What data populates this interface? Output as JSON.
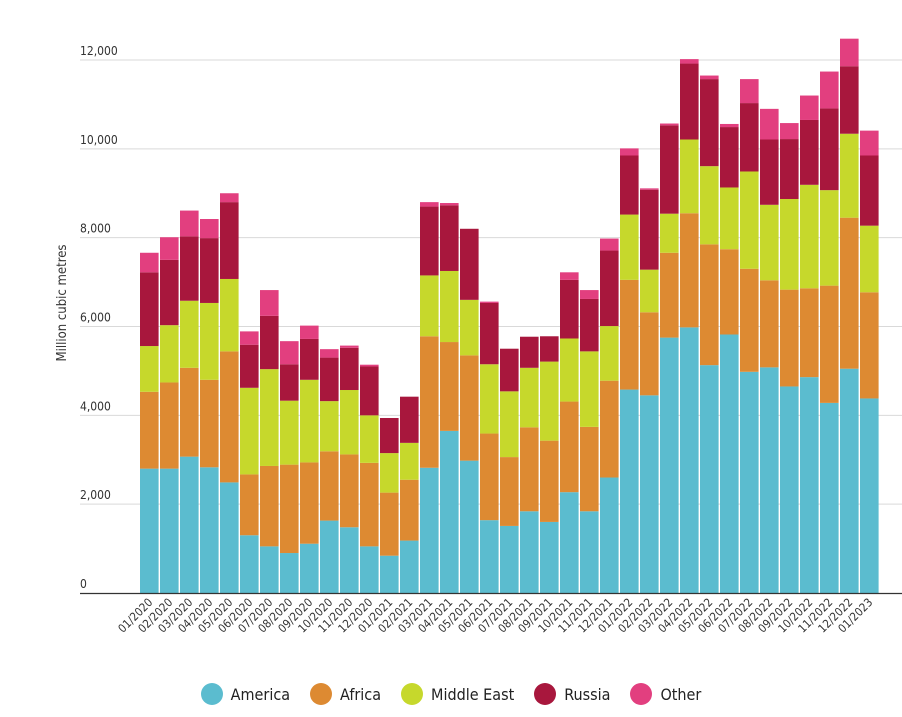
{
  "chart_data": {
    "type": "bar",
    "stacked": true,
    "title": "",
    "xlabel": "",
    "ylabel": "Million cubic metres",
    "ylim": [
      0,
      12500
    ],
    "yticks": [
      0,
      2000,
      4000,
      6000,
      8000,
      10000,
      12000
    ],
    "ytick_labels": [
      "0",
      "2,000",
      "4,000",
      "6,000",
      "8,000",
      "10,000",
      "12,000"
    ],
    "grid": true,
    "legend_position": "bottom-center",
    "categories": [
      "01/2020",
      "02/2020",
      "03/2020",
      "04/2020",
      "05/2020",
      "06/2020",
      "07/2020",
      "08/2020",
      "09/2020",
      "10/2020",
      "11/2020",
      "12/2020",
      "01/2021",
      "02/2021",
      "03/2021",
      "04/2021",
      "05/2021",
      "06/2021",
      "07/2021",
      "08/2021",
      "09/2021",
      "10/2021",
      "11/2021",
      "12/2021",
      "01/2022",
      "02/2022",
      "03/2022",
      "04/2022",
      "05/2022",
      "06/2022",
      "07/2022",
      "08/2022",
      "09/2022",
      "10/2022",
      "11/2022",
      "12/2022",
      "01/2023"
    ],
    "series": [
      {
        "name": "America",
        "color": "#5bbccf",
        "values": [
          2800,
          2800,
          3070,
          2830,
          2490,
          1300,
          1050,
          900,
          1110,
          1630,
          1480,
          1050,
          840,
          1180,
          2820,
          3650,
          2980,
          1640,
          1510,
          1840,
          1600,
          2270,
          1840,
          2600,
          4580,
          4450,
          5750,
          5980,
          5130,
          5820,
          4980,
          5080,
          4650,
          4860,
          4280,
          5050,
          4380
        ]
      },
      {
        "name": "Africa",
        "color": "#dd8a32",
        "values": [
          1730,
          1940,
          2000,
          1970,
          2950,
          1370,
          1810,
          1990,
          1830,
          1560,
          1640,
          1880,
          1420,
          1370,
          2960,
          2000,
          2370,
          1950,
          1550,
          1890,
          1830,
          2040,
          1900,
          2180,
          2470,
          1870,
          1910,
          2570,
          2720,
          1920,
          2320,
          1960,
          2180,
          2000,
          2640,
          3400,
          2390
        ]
      },
      {
        "name": "Middle East",
        "color": "#c6d82c",
        "values": [
          1030,
          1290,
          1510,
          1730,
          1630,
          1950,
          2180,
          1440,
          1860,
          1130,
          1450,
          1070,
          890,
          830,
          1370,
          1600,
          1250,
          1560,
          1480,
          1340,
          1780,
          1420,
          1700,
          1230,
          1470,
          960,
          880,
          1660,
          1760,
          1390,
          2190,
          1700,
          2040,
          2330,
          2150,
          1890,
          1500
        ]
      },
      {
        "name": "Russia",
        "color": "#a8173d",
        "values": [
          1660,
          1470,
          1450,
          1460,
          1730,
          970,
          1200,
          820,
          920,
          980,
          950,
          1100,
          790,
          1040,
          1550,
          1480,
          1600,
          1380,
          960,
          700,
          570,
          1320,
          1180,
          1700,
          1330,
          1800,
          1990,
          1710,
          1960,
          1360,
          1540,
          1470,
          1350,
          1460,
          1840,
          1520,
          1580
        ]
      },
      {
        "name": "Other",
        "color": "#e23f7f",
        "values": [
          440,
          510,
          580,
          430,
          200,
          300,
          580,
          520,
          300,
          190,
          50,
          40,
          0,
          0,
          100,
          50,
          0,
          30,
          0,
          0,
          0,
          170,
          200,
          270,
          160,
          30,
          40,
          100,
          80,
          70,
          540,
          690,
          360,
          550,
          830,
          620,
          560
        ]
      }
    ]
  },
  "legend": {
    "items": [
      {
        "label": "America",
        "color": "#5bbccf"
      },
      {
        "label": "Africa",
        "color": "#dd8a32"
      },
      {
        "label": "Middle East",
        "color": "#c6d82c"
      },
      {
        "label": "Russia",
        "color": "#a8173d"
      },
      {
        "label": "Other",
        "color": "#e23f7f"
      }
    ]
  }
}
